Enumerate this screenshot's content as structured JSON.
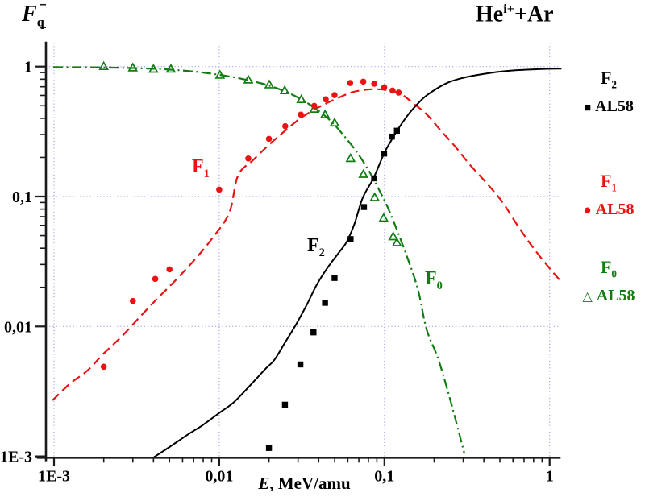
{
  "title": {
    "base": "He",
    "sup": "i+",
    "rest": "+Ar"
  },
  "axes": {
    "y_label": {
      "base": "F",
      "sub": "q"
    },
    "x_label": {
      "em": "E",
      "rest": ", MeV/amu"
    },
    "x_ticks": [
      {
        "v": 0.001,
        "label": "1E-3"
      },
      {
        "v": 0.01,
        "label": "0,01"
      },
      {
        "v": 0.1,
        "label": "0,1"
      },
      {
        "v": 1,
        "label": "1"
      }
    ],
    "y_ticks": [
      {
        "v": 1,
        "label": "1"
      },
      {
        "v": 0.1,
        "label": "0,1"
      },
      {
        "v": 0.01,
        "label": "0,01"
      },
      {
        "v": 0.001,
        "label": "1E-3"
      }
    ]
  },
  "colors": {
    "black": "#000000",
    "red": "#e81414",
    "green": "#117c11",
    "grid": "#9a9ae8",
    "axis": "#1a1a1a"
  },
  "legend": {
    "f2": {
      "name": "F",
      "sub": "2",
      "marker": "■",
      "source": "AL58"
    },
    "f1": {
      "name": "F",
      "sub": "1",
      "marker": "●",
      "source": "AL58"
    },
    "f0": {
      "name": "F",
      "sub": "0",
      "marker": "△",
      "source": "AL58"
    }
  },
  "annotations": {
    "f1": {
      "base": "F",
      "sub": "1"
    },
    "f2": {
      "base": "F",
      "sub": "2"
    },
    "f0": {
      "base": "F",
      "sub": "0"
    }
  },
  "chart_data": {
    "type": "scatter",
    "title": "He i+ + Ar equilibrium charge-state fractions F_q vs E",
    "xlabel": "E, MeV/amu",
    "ylabel": "F_q",
    "x_scale": "log",
    "y_scale": "log",
    "xlim": [
      0.001,
      1
    ],
    "ylim": [
      0.001,
      1
    ],
    "grid": "dotted major decades",
    "legend_position": "right outside",
    "series": [
      {
        "id": "F0",
        "label": "F0",
        "source": "AL58",
        "color_key": "green",
        "marker": "triangle-open",
        "line_style": "dash-dot",
        "points": [
          [
            0.002,
            1.0
          ],
          [
            0.003,
            0.976
          ],
          [
            0.004,
            0.954
          ],
          [
            0.0051,
            0.955
          ],
          [
            0.0101,
            0.858
          ],
          [
            0.015,
            0.788
          ],
          [
            0.0201,
            0.723
          ],
          [
            0.0249,
            0.652
          ],
          [
            0.0314,
            0.557
          ],
          [
            0.0376,
            0.47
          ],
          [
            0.0437,
            0.425
          ],
          [
            0.0499,
            0.368
          ],
          [
            0.0624,
            0.196
          ],
          [
            0.0746,
            0.148
          ],
          [
            0.0873,
            0.098
          ],
          [
            0.0989,
            0.068
          ],
          [
            0.113,
            0.049
          ],
          [
            0.119,
            0.044
          ]
        ],
        "curve": [
          [
            0.00099,
            0.99
          ],
          [
            0.0015,
            0.988
          ],
          [
            0.002,
            0.985
          ],
          [
            0.003,
            0.975
          ],
          [
            0.004,
            0.962
          ],
          [
            0.005,
            0.948
          ],
          [
            0.0065,
            0.925
          ],
          [
            0.008,
            0.9
          ],
          [
            0.01,
            0.865
          ],
          [
            0.0125,
            0.825
          ],
          [
            0.015,
            0.785
          ],
          [
            0.0175,
            0.75
          ],
          [
            0.02,
            0.715
          ],
          [
            0.025,
            0.645
          ],
          [
            0.031,
            0.565
          ],
          [
            0.037,
            0.49
          ],
          [
            0.044,
            0.415
          ],
          [
            0.05,
            0.355
          ],
          [
            0.058,
            0.285
          ],
          [
            0.068,
            0.22
          ],
          [
            0.08,
            0.16
          ],
          [
            0.092,
            0.115
          ],
          [
            0.105,
            0.082
          ],
          [
            0.12,
            0.054
          ],
          [
            0.14,
            0.032
          ],
          [
            0.16,
            0.019
          ],
          [
            0.18,
            0.0095
          ],
          [
            0.21,
            0.0058
          ],
          [
            0.24,
            0.0033
          ],
          [
            0.27,
            0.0019
          ],
          [
            0.305,
            0.00105
          ]
        ]
      },
      {
        "id": "F1",
        "label": "F1",
        "source": "AL58",
        "color_key": "red",
        "marker": "circle",
        "line_style": "dashed",
        "points": [
          [
            0.002,
            0.0049
          ],
          [
            0.003,
            0.0157
          ],
          [
            0.0041,
            0.0232
          ],
          [
            0.005,
            0.0275
          ],
          [
            0.01,
            0.113
          ],
          [
            0.015,
            0.196
          ],
          [
            0.02,
            0.278
          ],
          [
            0.0251,
            0.348
          ],
          [
            0.0312,
            0.427
          ],
          [
            0.0376,
            0.499
          ],
          [
            0.0441,
            0.56
          ],
          [
            0.0499,
            0.604
          ],
          [
            0.062,
            0.748
          ],
          [
            0.0745,
            0.766
          ],
          [
            0.0868,
            0.738
          ],
          [
            0.0997,
            0.693
          ],
          [
            0.112,
            0.654
          ],
          [
            0.122,
            0.631
          ]
        ],
        "curve": [
          [
            0.00098,
            0.0027
          ],
          [
            0.00124,
            0.0036
          ],
          [
            0.0016,
            0.0046
          ],
          [
            0.002,
            0.0062
          ],
          [
            0.0026,
            0.0085
          ],
          [
            0.0033,
            0.0118
          ],
          [
            0.0042,
            0.0163
          ],
          [
            0.0055,
            0.023
          ],
          [
            0.007,
            0.032
          ],
          [
            0.009,
            0.047
          ],
          [
            0.0115,
            0.075
          ],
          [
            0.013,
            0.145
          ],
          [
            0.016,
            0.19
          ],
          [
            0.02,
            0.25
          ],
          [
            0.025,
            0.32
          ],
          [
            0.031,
            0.4
          ],
          [
            0.038,
            0.47
          ],
          [
            0.045,
            0.525
          ],
          [
            0.055,
            0.59
          ],
          [
            0.065,
            0.64
          ],
          [
            0.078,
            0.665
          ],
          [
            0.09,
            0.67
          ],
          [
            0.105,
            0.66
          ],
          [
            0.115,
            0.645
          ],
          [
            0.13,
            0.6
          ],
          [
            0.15,
            0.52
          ],
          [
            0.18,
            0.43
          ],
          [
            0.22,
            0.32
          ],
          [
            0.27,
            0.24
          ],
          [
            0.33,
            0.175
          ],
          [
            0.42,
            0.125
          ],
          [
            0.52,
            0.09
          ],
          [
            0.65,
            0.058
          ],
          [
            0.8,
            0.04
          ],
          [
            1.0,
            0.028
          ],
          [
            1.18,
            0.022
          ]
        ]
      },
      {
        "id": "F2",
        "label": "F2",
        "source": "AL58",
        "color_key": "black",
        "marker": "square",
        "line_style": "solid",
        "points": [
          [
            0.02,
            0.00116
          ],
          [
            0.025,
            0.0025
          ],
          [
            0.031,
            0.0051
          ],
          [
            0.0372,
            0.009
          ],
          [
            0.0437,
            0.0152
          ],
          [
            0.0499,
            0.0236
          ],
          [
            0.0624,
            0.047
          ],
          [
            0.0752,
            0.083
          ],
          [
            0.0867,
            0.138
          ],
          [
            0.0996,
            0.214
          ],
          [
            0.111,
            0.289
          ],
          [
            0.119,
            0.321
          ]
        ],
        "curve": [
          [
            0.004,
            0.00098
          ],
          [
            0.005,
            0.00118
          ],
          [
            0.0065,
            0.00148
          ],
          [
            0.008,
            0.00175
          ],
          [
            0.01,
            0.00216
          ],
          [
            0.0122,
            0.0026
          ],
          [
            0.015,
            0.0034
          ],
          [
            0.019,
            0.0047
          ],
          [
            0.0215,
            0.0055
          ],
          [
            0.025,
            0.0075
          ],
          [
            0.029,
            0.0102
          ],
          [
            0.034,
            0.0148
          ],
          [
            0.0388,
            0.0208
          ],
          [
            0.045,
            0.028
          ],
          [
            0.053,
            0.037
          ],
          [
            0.059,
            0.0445
          ],
          [
            0.066,
            0.062
          ],
          [
            0.0738,
            0.0976
          ],
          [
            0.086,
            0.139
          ],
          [
            0.0996,
            0.215
          ],
          [
            0.11,
            0.27
          ],
          [
            0.122,
            0.336
          ],
          [
            0.14,
            0.43
          ],
          [
            0.155,
            0.5
          ],
          [
            0.18,
            0.6
          ],
          [
            0.235,
            0.74
          ],
          [
            0.3,
            0.82
          ],
          [
            0.383,
            0.871
          ],
          [
            0.5,
            0.914
          ],
          [
            0.65,
            0.94
          ],
          [
            0.85,
            0.955
          ],
          [
            1.0,
            0.962
          ],
          [
            1.18,
            0.965
          ]
        ]
      }
    ]
  }
}
